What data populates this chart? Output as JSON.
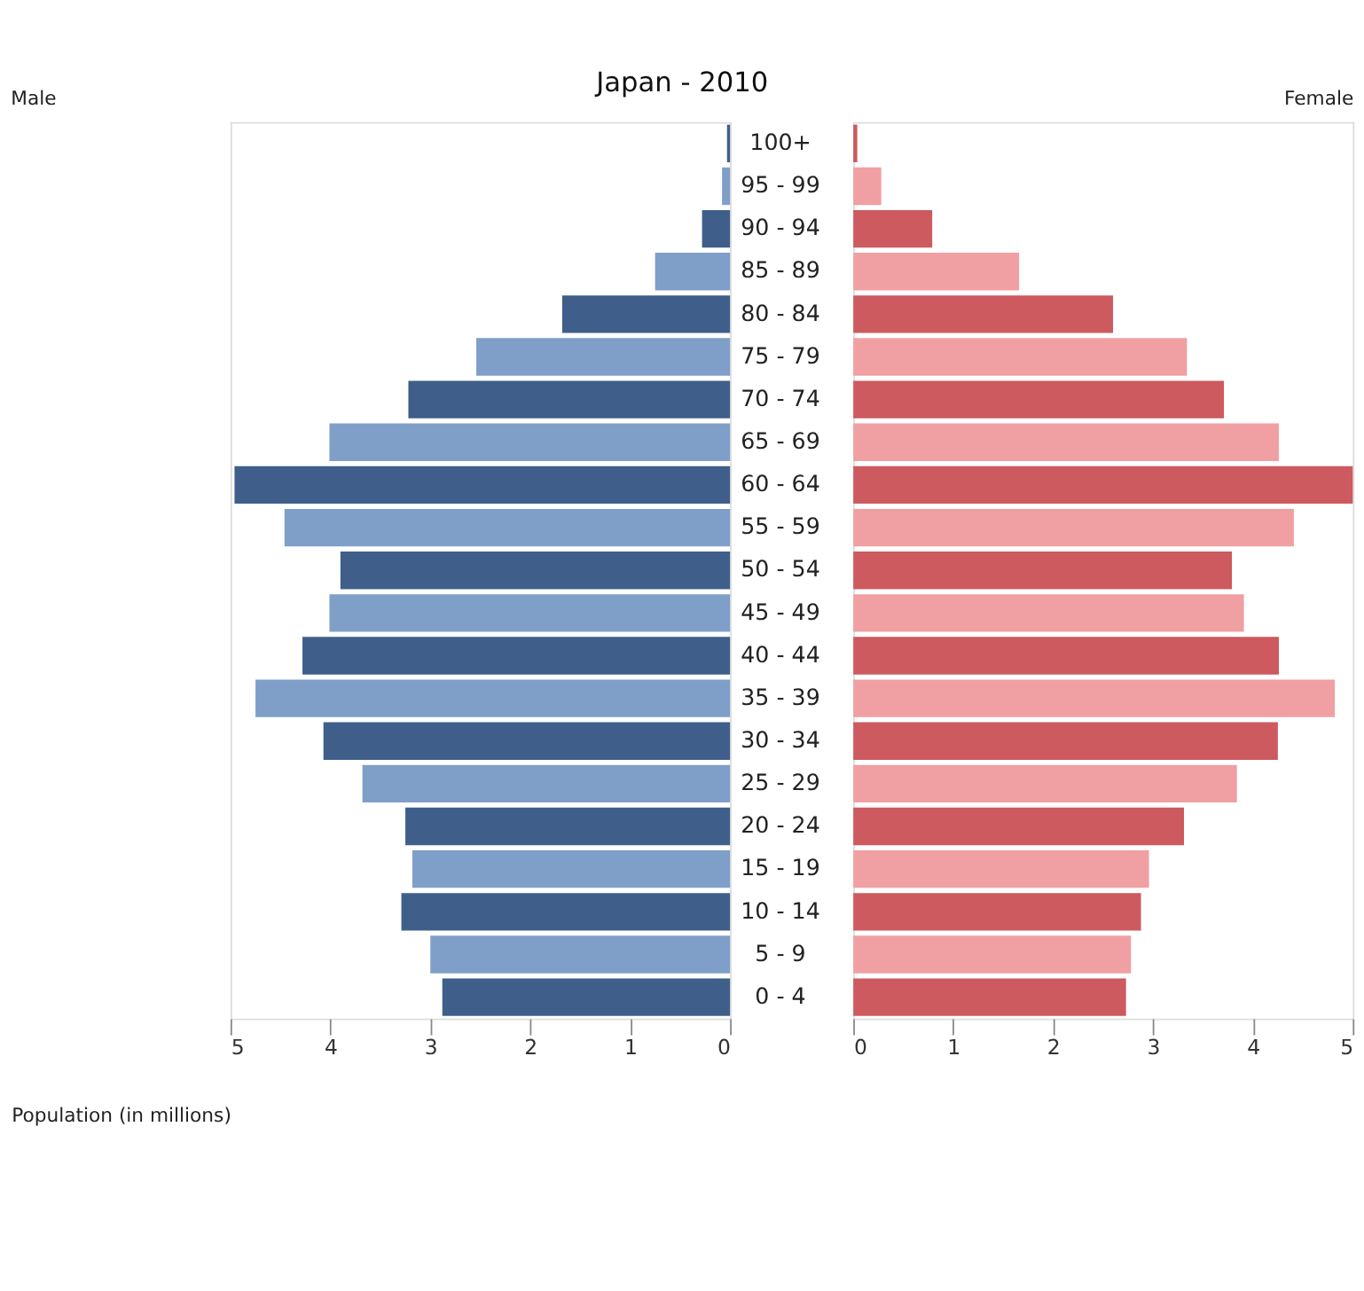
{
  "chart_data": [
    {
      "type": "bar",
      "orientation": "horizontal",
      "title": "Japan - 2010",
      "xlabel": "Population (in millions)",
      "tick_labels": "x",
      "legend": "top left",
      "categories": [
        "100+",
        "95 - 99",
        "90 - 94",
        "85 - 89",
        "80 - 84",
        "75 - 79",
        "70 - 74",
        "65 - 69",
        "60 - 64",
        "55 - 59",
        "50 - 54",
        "45 - 49",
        "40 - 44",
        "35 - 39",
        "30 - 34",
        "25 - 29",
        "20 - 24",
        "15 - 19",
        "10 - 14",
        "5 - 9",
        "0 - 4"
      ],
      "series": [
        {
          "name": "Male",
          "colors": [
            "#3f5f8a",
            "#7f9fc8",
            "#3f5f8a",
            "#7f9fc8",
            "#3f5f8a",
            "#7f9fc8",
            "#3f5f8a",
            "#7f9fc8",
            "#3f5f8a",
            "#7f9fc8",
            "#3f5f8a",
            "#7f9fc8",
            "#3f5f8a",
            "#7f9fc8",
            "#3f5f8a",
            "#7f9fc8",
            "#3f5f8a",
            "#7f9fc8",
            "#3f5f8a",
            "#7f9fc8",
            "#3f5f8a"
          ],
          "values": [
            0.03,
            0.08,
            0.28,
            0.75,
            1.68,
            2.54,
            3.22,
            4.01,
            4.96,
            4.46,
            3.9,
            4.01,
            4.28,
            4.75,
            4.07,
            3.68,
            3.25,
            3.18,
            3.29,
            3.0,
            2.88
          ]
        }
      ],
      "xlim": [
        5,
        0
      ],
      "xticks": [
        5,
        4,
        3,
        2,
        1,
        0
      ],
      "grid": false
    },
    {
      "type": "bar",
      "orientation": "horizontal",
      "legend": "top right",
      "categories": [
        "100+",
        "95 - 99",
        "90 - 94",
        "85 - 89",
        "80 - 84",
        "75 - 79",
        "70 - 74",
        "65 - 69",
        "60 - 64",
        "55 - 59",
        "50 - 54",
        "45 - 49",
        "40 - 44",
        "35 - 39",
        "30 - 34",
        "25 - 29",
        "20 - 24",
        "15 - 19",
        "10 - 14",
        "5 - 9",
        "0 - 4"
      ],
      "series": [
        {
          "name": "Female",
          "colors": [
            "#cc5a5f",
            "#f0a0a3",
            "#cc5a5f",
            "#f0a0a3",
            "#cc5a5f",
            "#f0a0a3",
            "#cc5a5f",
            "#f0a0a3",
            "#cc5a5f",
            "#f0a0a3",
            "#cc5a5f",
            "#f0a0a3",
            "#cc5a5f",
            "#f0a0a3",
            "#cc5a5f",
            "#f0a0a3",
            "#cc5a5f",
            "#f0a0a3",
            "#cc5a5f",
            "#f0a0a3",
            "#cc5a5f"
          ],
          "values": [
            0.04,
            0.28,
            0.79,
            1.66,
            2.6,
            3.34,
            3.71,
            4.26,
            5.0,
            4.41,
            3.79,
            3.91,
            4.26,
            4.82,
            4.25,
            3.84,
            3.31,
            2.96,
            2.88,
            2.78,
            2.73
          ]
        }
      ],
      "xlim": [
        0,
        5
      ],
      "xticks": [
        0,
        1,
        2,
        3,
        4,
        5
      ],
      "grid": false
    }
  ]
}
